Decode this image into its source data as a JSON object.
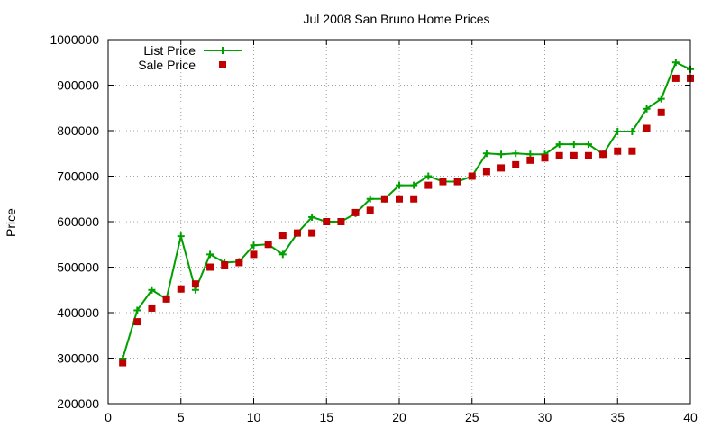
{
  "chart_data": {
    "type": "line",
    "title": "Jul 2008 San Bruno Home Prices",
    "xlabel": "",
    "ylabel": "Price",
    "xlim": [
      0,
      40
    ],
    "ylim": [
      200000,
      1000000
    ],
    "xticks": [
      "0",
      "5",
      "10",
      "15",
      "20",
      "25",
      "30",
      "35",
      "40"
    ],
    "xtick_values": [
      0,
      5,
      10,
      15,
      20,
      25,
      30,
      35,
      40
    ],
    "yticks": [
      "200000",
      "300000",
      "400000",
      "500000",
      "600000",
      "700000",
      "800000",
      "900000",
      "1000000"
    ],
    "ytick_values": [
      200000,
      300000,
      400000,
      500000,
      600000,
      700000,
      800000,
      900000,
      1000000
    ],
    "grid": true,
    "legend_position": "top-left",
    "series": [
      {
        "name": "List Price",
        "style": "line-plus",
        "color": "#00a000",
        "x": [
          1,
          2,
          3,
          4,
          5,
          6,
          7,
          8,
          9,
          10,
          11,
          12,
          13,
          14,
          15,
          16,
          17,
          18,
          19,
          20,
          21,
          22,
          23,
          24,
          25,
          26,
          27,
          28,
          29,
          30,
          31,
          32,
          33,
          34,
          35,
          36,
          37,
          38,
          39,
          40
        ],
        "values": [
          299000,
          405000,
          450000,
          430000,
          568000,
          450000,
          528000,
          510000,
          512000,
          548000,
          550000,
          528000,
          575000,
          610000,
          600000,
          600000,
          618000,
          650000,
          650000,
          680000,
          680000,
          700000,
          688000,
          688000,
          700000,
          750000,
          748000,
          750000,
          748000,
          748000,
          770000,
          770000,
          770000,
          748000,
          798000,
          798000,
          848000,
          870000,
          950000,
          935000
        ]
      },
      {
        "name": "Sale Price",
        "style": "square",
        "color": "#c00000",
        "x": [
          1,
          2,
          3,
          4,
          5,
          6,
          7,
          8,
          9,
          10,
          11,
          12,
          13,
          14,
          15,
          16,
          17,
          18,
          19,
          20,
          21,
          22,
          23,
          24,
          25,
          26,
          27,
          28,
          29,
          30,
          31,
          32,
          33,
          34,
          35,
          36,
          37,
          38,
          39,
          40
        ],
        "values": [
          290000,
          380000,
          410000,
          430000,
          452000,
          463000,
          500000,
          505000,
          510000,
          528000,
          550000,
          570000,
          575000,
          575000,
          600000,
          600000,
          620000,
          625000,
          650000,
          650000,
          650000,
          680000,
          688000,
          688000,
          700000,
          710000,
          718000,
          725000,
          735000,
          740000,
          745000,
          745000,
          745000,
          748000,
          755000,
          755000,
          805000,
          840000,
          915000,
          915000
        ]
      }
    ]
  }
}
